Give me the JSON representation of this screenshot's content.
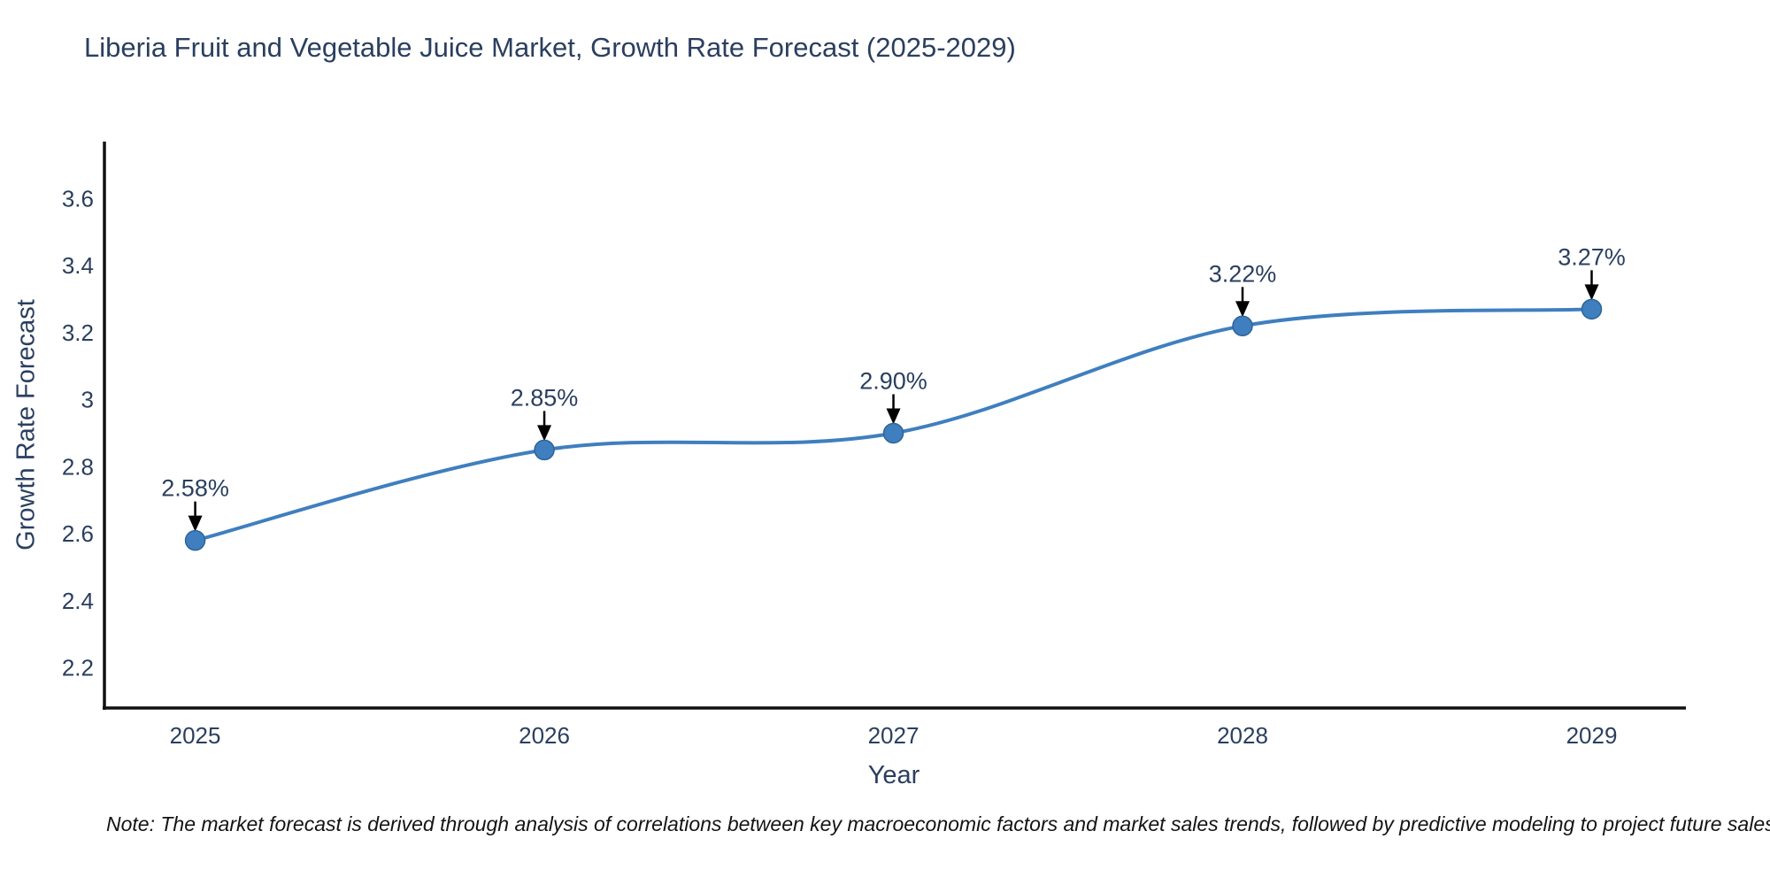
{
  "note": {
    "text": "Note: The market forecast is derived through analysis of correlations between key macroeconomic factors and market sales trends, followed by predictive modeling to project future sales"
  },
  "chart_data": {
    "type": "line",
    "title": "Liberia Fruit and Vegetable Juice Market, Growth Rate Forecast (2025-2029)",
    "xlabel": "Year",
    "ylabel": "Growth Rate Forecast",
    "x": [
      2025,
      2026,
      2027,
      2028,
      2029
    ],
    "y": [
      2.58,
      2.85,
      2.9,
      3.22,
      3.27
    ],
    "labels": [
      "2.58%",
      "2.85%",
      "2.90%",
      "3.22%",
      "3.27%"
    ],
    "x_ticks": [
      2025,
      2026,
      2027,
      2028,
      2029
    ],
    "x_tick_labels": [
      "2025",
      "2026",
      "2027",
      "2028",
      "2029"
    ],
    "y_ticks": [
      2.2,
      2.4,
      2.6,
      2.8,
      3,
      3.2,
      3.4,
      3.6
    ],
    "y_tick_labels": [
      "2.2",
      "2.4",
      "2.6",
      "2.8",
      "3",
      "3.2",
      "3.4",
      "3.6"
    ],
    "xlim": [
      2024.74,
      2029.27
    ],
    "ylim": [
      2.08,
      3.77
    ],
    "grid": false,
    "legend": "none",
    "line_shape": "spline",
    "line_color": "#3f7fbf",
    "marker_color": "#3f7fbf",
    "marker_edge_color": "#2e6496",
    "axis_color": "#111111",
    "text_color": "#2a3f5f",
    "annotation_color": "#2a3f5f",
    "arrow_color": "#000000"
  }
}
